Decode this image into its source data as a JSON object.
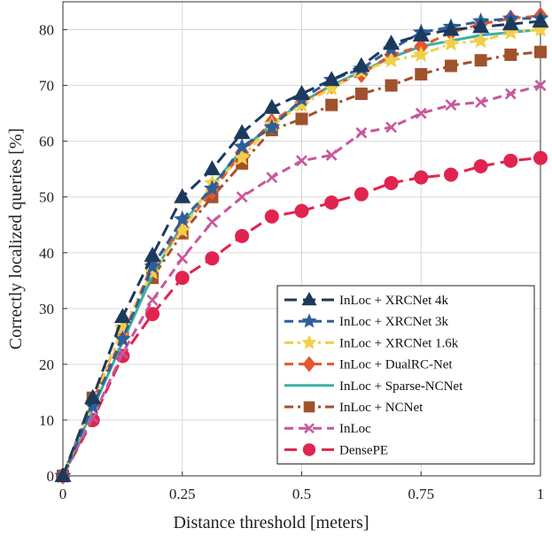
{
  "chart_data": {
    "type": "line",
    "title": "",
    "xlabel": "Distance threshold [meters]",
    "ylabel": "Correctly localized queries [%]",
    "xlim": [
      0,
      1
    ],
    "ylim": [
      0,
      85
    ],
    "xticks": [
      0,
      0.25,
      0.5,
      0.75,
      1
    ],
    "xtick_labels": [
      "0",
      "0.25",
      "0.5",
      "0.75",
      "1"
    ],
    "yticks": [
      0,
      10,
      20,
      30,
      40,
      50,
      60,
      70,
      80
    ],
    "ytick_labels": [
      "0",
      "10",
      "20",
      "30",
      "40",
      "50",
      "60",
      "70",
      "80"
    ],
    "grid": true,
    "legend_position": "bottom-right",
    "x": [
      0,
      0.0625,
      0.125,
      0.1875,
      0.25,
      0.3125,
      0.375,
      0.4375,
      0.5,
      0.5625,
      0.625,
      0.6875,
      0.75,
      0.8125,
      0.875,
      0.9375,
      1.0
    ],
    "series": [
      {
        "name": "InLoc + XRCNet 4k",
        "color": "#1b3a5c",
        "dash": "long-dash",
        "marker": "triangle",
        "values": [
          0,
          14.0,
          28.5,
          39.5,
          50.0,
          55.0,
          61.5,
          66.0,
          68.5,
          71.0,
          73.5,
          77.5,
          79.0,
          80.0,
          80.5,
          81.0,
          81.5
        ]
      },
      {
        "name": "InLoc + XRCNet 3k",
        "color": "#2e5f9a",
        "dash": "dash",
        "marker": "star",
        "values": [
          0,
          12.5,
          24.5,
          37.5,
          46.0,
          51.5,
          59.0,
          62.5,
          67.5,
          71.0,
          73.0,
          76.5,
          79.5,
          80.5,
          81.5,
          82.0,
          82.0
        ]
      },
      {
        "name": "InLoc + XRCNet 1.6k",
        "color": "#f2cf4a",
        "dash": "dash-dot",
        "marker": "star",
        "values": [
          0,
          13.0,
          26.5,
          36.5,
          44.0,
          52.5,
          57.0,
          63.0,
          66.5,
          69.5,
          72.5,
          74.5,
          75.5,
          77.5,
          78.0,
          79.5,
          80.0
        ]
      },
      {
        "name": "InLoc + DualRC-Net",
        "color": "#e4572e",
        "dash": "dash",
        "marker": "diamond",
        "values": [
          0,
          13.5,
          25.0,
          38.0,
          44.5,
          51.0,
          58.0,
          63.5,
          67.0,
          70.0,
          72.0,
          75.5,
          77.0,
          79.5,
          81.0,
          82.0,
          82.5
        ]
      },
      {
        "name": "InLoc + Sparse-NCNet",
        "color": "#3aafa9",
        "dash": "solid",
        "marker": "none",
        "values": [
          0,
          12.0,
          24.0,
          36.0,
          45.0,
          52.0,
          58.5,
          63.0,
          67.0,
          70.0,
          72.5,
          75.0,
          77.0,
          78.0,
          79.0,
          79.5,
          80.0
        ]
      },
      {
        "name": "InLoc + NCNet",
        "color": "#a0522d",
        "dash": "dash-dot",
        "marker": "square",
        "values": [
          0,
          14.0,
          26.0,
          35.5,
          43.5,
          50.0,
          56.0,
          62.0,
          64.0,
          66.5,
          68.5,
          70.0,
          72.0,
          73.5,
          74.5,
          75.5,
          76.0
        ]
      },
      {
        "name": "InLoc",
        "color": "#c8579b",
        "dash": "dash",
        "marker": "x",
        "values": [
          0,
          10.5,
          22.0,
          31.5,
          39.0,
          45.5,
          50.0,
          53.5,
          56.5,
          57.5,
          61.5,
          62.5,
          65.0,
          66.5,
          67.0,
          68.5,
          70.0
        ]
      },
      {
        "name": "DensePE",
        "color": "#e0244f",
        "dash": "long-dash",
        "marker": "circle",
        "values": [
          0,
          10.0,
          21.5,
          29.0,
          35.5,
          39.0,
          43.0,
          46.5,
          47.5,
          49.0,
          50.5,
          52.5,
          53.5,
          54.0,
          55.5,
          56.5,
          57.0
        ]
      }
    ]
  }
}
